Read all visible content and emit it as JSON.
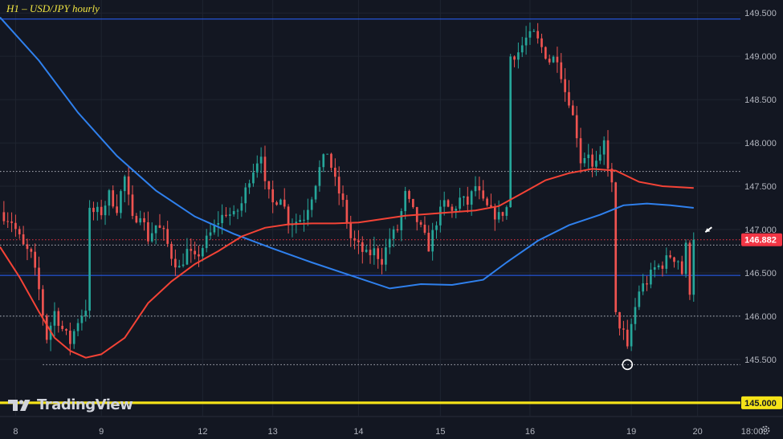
{
  "chart_title": "H1 – USD/JPY hourly",
  "logo_text": "TradingView",
  "colors": {
    "background": "#131722",
    "up_candle": "#26a69a",
    "down_candle": "#ef5350",
    "ma_fast": "#f44336",
    "ma_slow": "#2f80ed",
    "hline_blue": "#2962ff",
    "hline_yellow": "#f5e318",
    "level_dotted": "#b2b5be",
    "price_label": "#f23645"
  },
  "icons": [
    "tradingview-logo-icon",
    "settings-gear-icon",
    "arrow-pointer-icon",
    "circle-marker-icon"
  ],
  "chart_data": {
    "type": "candlestick",
    "symbol": "USD/JPY",
    "timeframe": "H1",
    "y_axis": {
      "ylim": [
        144.85,
        149.65
      ],
      "ticks": [
        "149.500",
        "149.000",
        "148.500",
        "148.000",
        "147.500",
        "147.000",
        "146.500",
        "146.000",
        "145.500"
      ]
    },
    "x_axis": {
      "xlim": [
        0,
        190
      ],
      "ticks": [
        {
          "label": "8",
          "x": 4
        },
        {
          "label": "9",
          "x": 26
        },
        {
          "label": "12",
          "x": 52
        },
        {
          "label": "13",
          "x": 70
        },
        {
          "label": "14",
          "x": 92
        },
        {
          "label": "15",
          "x": 113
        },
        {
          "label": "16",
          "x": 136
        },
        {
          "label": "19",
          "x": 162
        },
        {
          "label": "20",
          "x": 179
        },
        {
          "label": "18:00",
          "x": 193
        }
      ]
    },
    "horizontal_lines": [
      {
        "value": 149.43,
        "style": "solid",
        "color": "#2962ff"
      },
      {
        "value": 146.47,
        "style": "solid",
        "color": "#2962ff"
      },
      {
        "value": 145.0,
        "style": "solid-thick",
        "color": "#f5e318",
        "label": "145.000"
      },
      {
        "value": 147.67,
        "style": "dotted",
        "color": "#b2b5be"
      },
      {
        "value": 146.82,
        "style": "dotted",
        "color": "#b2b5be"
      },
      {
        "value": 146.0,
        "style": "dotted",
        "color": "#b2b5be"
      },
      {
        "value": 145.44,
        "style": "dotted",
        "color": "#b2b5be",
        "x_start": 11
      },
      {
        "value": 146.882,
        "style": "dotted",
        "color": "#f23645",
        "label": "146.882"
      }
    ],
    "current_price": {
      "value": 146.882,
      "label": "146.882"
    },
    "close_anchors": [
      [
        0,
        147.2
      ],
      [
        3,
        147.1
      ],
      [
        6,
        146.8
      ],
      [
        8,
        146.7
      ],
      [
        10,
        146.3
      ],
      [
        12,
        145.75
      ],
      [
        14,
        146.05
      ],
      [
        16,
        145.85
      ],
      [
        18,
        145.7
      ],
      [
        20,
        145.95
      ],
      [
        22,
        146.1
      ],
      [
        23,
        147.2
      ],
      [
        26,
        147.2
      ],
      [
        28,
        147.4
      ],
      [
        30,
        147.25
      ],
      [
        32,
        147.6
      ],
      [
        34,
        147.1
      ],
      [
        36,
        147.2
      ],
      [
        38,
        146.9
      ],
      [
        40,
        147.05
      ],
      [
        42,
        146.95
      ],
      [
        44,
        146.7
      ],
      [
        46,
        146.55
      ],
      [
        48,
        146.75
      ],
      [
        50,
        146.65
      ],
      [
        52,
        146.8
      ],
      [
        54,
        146.95
      ],
      [
        56,
        147.1
      ],
      [
        58,
        147.2
      ],
      [
        60,
        147.15
      ],
      [
        62,
        147.3
      ],
      [
        64,
        147.6
      ],
      [
        66,
        147.8
      ],
      [
        67,
        147.9
      ],
      [
        68,
        147.5
      ],
      [
        70,
        147.3
      ],
      [
        72,
        147.4
      ],
      [
        74,
        147.1
      ],
      [
        76,
        147.1
      ],
      [
        78,
        147.15
      ],
      [
        80,
        147.4
      ],
      [
        82,
        147.7
      ],
      [
        84,
        147.9
      ],
      [
        86,
        147.55
      ],
      [
        88,
        147.3
      ],
      [
        90,
        146.9
      ],
      [
        92,
        146.8
      ],
      [
        94,
        146.7
      ],
      [
        96,
        146.75
      ],
      [
        98,
        146.65
      ],
      [
        100,
        146.9
      ],
      [
        102,
        147.0
      ],
      [
        104,
        147.4
      ],
      [
        106,
        147.2
      ],
      [
        108,
        147.0
      ],
      [
        110,
        146.8
      ],
      [
        112,
        147.1
      ],
      [
        114,
        147.3
      ],
      [
        116,
        147.2
      ],
      [
        118,
        147.35
      ],
      [
        120,
        147.3
      ],
      [
        122,
        147.5
      ],
      [
        124,
        147.3
      ],
      [
        126,
        147.2
      ],
      [
        128,
        147.15
      ],
      [
        130,
        147.25
      ],
      [
        131,
        149.0
      ],
      [
        133,
        149.05
      ],
      [
        135,
        149.2
      ],
      [
        137,
        149.25
      ],
      [
        139,
        149.1
      ],
      [
        141,
        148.95
      ],
      [
        143,
        149.0
      ],
      [
        145,
        148.6
      ],
      [
        146,
        148.5
      ],
      [
        148,
        148.1
      ],
      [
        149,
        147.8
      ],
      [
        151,
        147.9
      ],
      [
        152,
        147.7
      ],
      [
        154,
        147.8
      ],
      [
        155,
        148.0
      ],
      [
        157,
        147.5
      ],
      [
        158,
        146.0
      ],
      [
        160,
        145.8
      ],
      [
        161,
        145.6
      ],
      [
        162,
        145.9
      ],
      [
        164,
        146.3
      ],
      [
        166,
        146.4
      ],
      [
        168,
        146.55
      ],
      [
        170,
        146.6
      ],
      [
        172,
        146.7
      ],
      [
        174,
        146.65
      ],
      [
        175,
        146.5
      ],
      [
        176,
        146.8
      ],
      [
        177,
        146.3
      ],
      [
        178,
        146.88
      ]
    ],
    "ma_fast_series": [
      [
        0,
        146.8
      ],
      [
        5,
        146.45
      ],
      [
        10,
        146.05
      ],
      [
        14,
        145.75
      ],
      [
        18,
        145.6
      ],
      [
        22,
        145.52
      ],
      [
        26,
        145.56
      ],
      [
        32,
        145.75
      ],
      [
        38,
        146.15
      ],
      [
        44,
        146.4
      ],
      [
        50,
        146.6
      ],
      [
        56,
        146.75
      ],
      [
        62,
        146.92
      ],
      [
        68,
        147.02
      ],
      [
        74,
        147.06
      ],
      [
        80,
        147.07
      ],
      [
        86,
        147.07
      ],
      [
        92,
        147.08
      ],
      [
        98,
        147.12
      ],
      [
        104,
        147.16
      ],
      [
        110,
        147.18
      ],
      [
        116,
        147.2
      ],
      [
        122,
        147.22
      ],
      [
        128,
        147.27
      ],
      [
        134,
        147.42
      ],
      [
        140,
        147.57
      ],
      [
        146,
        147.65
      ],
      [
        152,
        147.7
      ],
      [
        158,
        147.68
      ],
      [
        164,
        147.55
      ],
      [
        170,
        147.5
      ],
      [
        178,
        147.48
      ]
    ],
    "ma_slow_series": [
      [
        0,
        149.45
      ],
      [
        10,
        148.95
      ],
      [
        20,
        148.35
      ],
      [
        30,
        147.85
      ],
      [
        40,
        147.45
      ],
      [
        50,
        147.15
      ],
      [
        60,
        146.95
      ],
      [
        70,
        146.78
      ],
      [
        80,
        146.62
      ],
      [
        90,
        146.47
      ],
      [
        100,
        146.32
      ],
      [
        108,
        146.37
      ],
      [
        116,
        146.36
      ],
      [
        124,
        146.42
      ],
      [
        130,
        146.62
      ],
      [
        138,
        146.87
      ],
      [
        146,
        147.05
      ],
      [
        154,
        147.17
      ],
      [
        160,
        147.28
      ],
      [
        166,
        147.3
      ],
      [
        172,
        147.28
      ],
      [
        178,
        147.25
      ]
    ],
    "markers": [
      {
        "type": "circle",
        "x": 161,
        "y": 145.44
      },
      {
        "type": "arrow",
        "x": 181,
        "y": 146.97
      }
    ]
  }
}
